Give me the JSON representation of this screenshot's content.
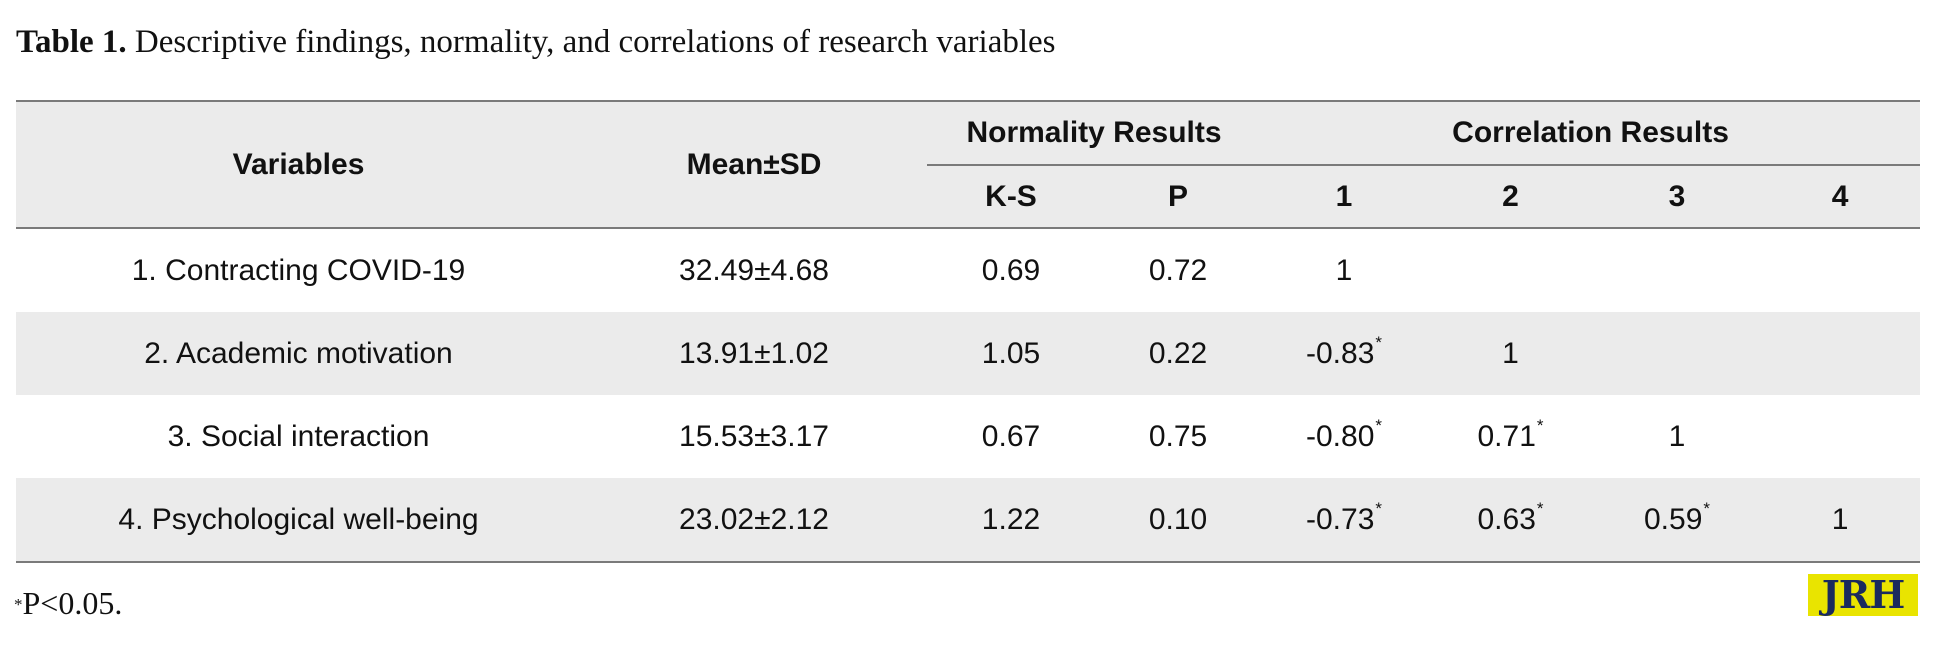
{
  "caption": {
    "label": "Table 1.",
    "text": "Descriptive findings, normality, and correlations of research variables"
  },
  "table": {
    "headers": {
      "variables": "Variables",
      "mean_sd": "Mean±SD",
      "normality_group": "Normality Results",
      "correlation_group": "Correlation Results",
      "ks": "K-S",
      "p": "P",
      "c1": "1",
      "c2": "2",
      "c3": "3",
      "c4": "4"
    },
    "rows": [
      {
        "variable": "1. Contracting COVID-19",
        "mean_sd": "32.49±4.68",
        "ks": "0.69",
        "p": "0.72",
        "c1": "1",
        "c2": "",
        "c3": "",
        "c4": ""
      },
      {
        "variable": "2. Academic motivation",
        "mean_sd": "13.91±1.02",
        "ks": "1.05",
        "p": "0.22",
        "c1": "-0.83",
        "c2": "1",
        "c3": "",
        "c4": ""
      },
      {
        "variable": "3. Social interaction",
        "mean_sd": "15.53±3.17",
        "ks": "0.67",
        "p": "0.75",
        "c1": "-0.80",
        "c2": "0.71",
        "c3": "1",
        "c4": ""
      },
      {
        "variable": "4. Psychological well-being",
        "mean_sd": "23.02±2.12",
        "ks": "1.22",
        "p": "0.10",
        "c1": "-0.73",
        "c2": "0.63",
        "c3": "0.59",
        "c4": "1"
      }
    ],
    "significance_mark": "*"
  },
  "footnote": {
    "mark": "*",
    "text": "P<0.05."
  },
  "logo": {
    "text": "JRH",
    "bg_color": "#e9e400",
    "text_color": "#1a2a5e"
  }
}
